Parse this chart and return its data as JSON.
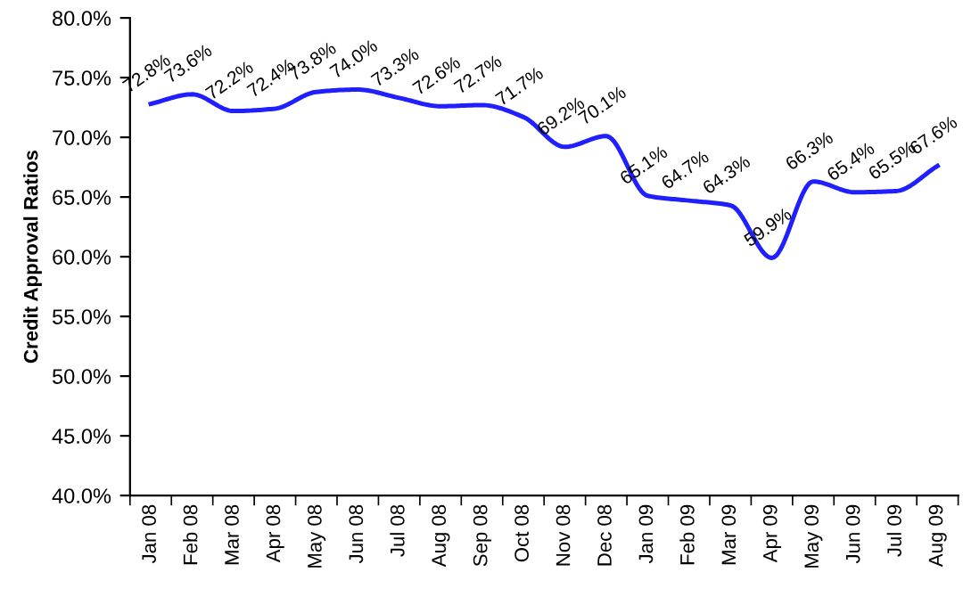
{
  "chart_data": {
    "type": "line",
    "ylabel": "Credit Approval Ratios",
    "categories": [
      "Jan 08",
      "Feb 08",
      "Mar 08",
      "Apr 08",
      "May 08",
      "Jun 08",
      "Jul 08",
      "Aug 08",
      "Sep 08",
      "Oct 08",
      "Nov 08",
      "Dec 08",
      "Jan 09",
      "Feb 09",
      "Mar 09",
      "Apr 09",
      "May 09",
      "Jun 09",
      "Jul 09",
      "Aug 09"
    ],
    "series": [
      {
        "color": "#1f1fff",
        "values": [
          72.8,
          73.6,
          72.2,
          72.4,
          73.8,
          74.0,
          73.3,
          72.6,
          72.7,
          71.7,
          69.2,
          70.1,
          65.1,
          64.7,
          64.3,
          59.9,
          66.3,
          65.4,
          65.5,
          67.6
        ],
        "value_labels": [
          "72.8%",
          "73.6%",
          "72.2%",
          "72.4%",
          "73.8%",
          "74.0%",
          "73.3%",
          "72.6%",
          "72.7%",
          "71.7%",
          "69.2%",
          "70.1%",
          "65.1%",
          "64.7%",
          "64.3%",
          "59.9%",
          "66.3%",
          "65.4%",
          "65.5%",
          "67.6%"
        ]
      }
    ],
    "ylim": [
      40,
      80
    ],
    "yticks": [
      {
        "value": 40,
        "label": "40.0%"
      },
      {
        "value": 45,
        "label": "45.0%"
      },
      {
        "value": 50,
        "label": "50.0%"
      },
      {
        "value": 55,
        "label": "55.0%"
      },
      {
        "value": 60,
        "label": "60.0%"
      },
      {
        "value": 65,
        "label": "65.0%"
      },
      {
        "value": 70,
        "label": "70.0%"
      },
      {
        "value": 75,
        "label": "75.0%"
      },
      {
        "value": 80,
        "label": "80.0%"
      }
    ],
    "grid": false,
    "legend": false,
    "marker": "none",
    "line_style": "solid"
  }
}
